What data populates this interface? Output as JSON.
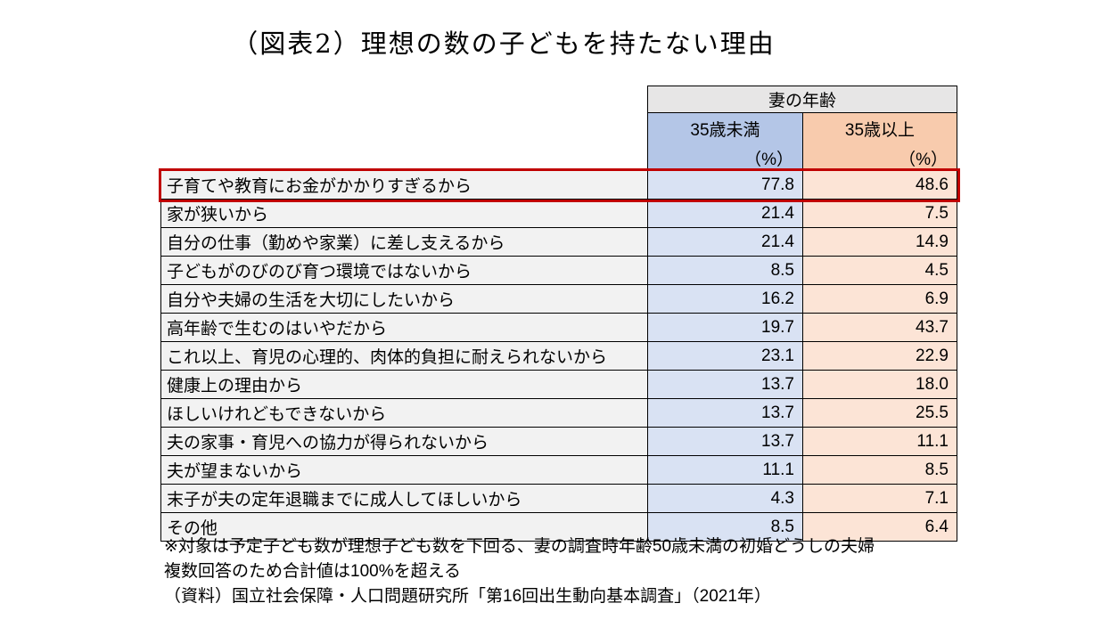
{
  "title": "（図表2）理想の数の子どもを持たない理由",
  "table": {
    "group_header": "妻の年齢",
    "columns": [
      {
        "label": "35歳未満",
        "unit": "（%）"
      },
      {
        "label": "35歳以上",
        "unit": "（%）"
      }
    ],
    "rows": [
      {
        "label": "子育てや教育にお金がかかりすぎるから",
        "under35": "77.8",
        "over35": "48.6",
        "highlighted": true
      },
      {
        "label": "家が狭いから",
        "under35": "21.4",
        "over35": "7.5",
        "highlighted": false
      },
      {
        "label": "自分の仕事（勤めや家業）に差し支えるから",
        "under35": "21.4",
        "over35": "14.9",
        "highlighted": false
      },
      {
        "label": "子どもがのびのび育つ環境ではないから",
        "under35": "8.5",
        "over35": "4.5",
        "highlighted": false
      },
      {
        "label": "自分や夫婦の生活を大切にしたいから",
        "under35": "16.2",
        "over35": "6.9",
        "highlighted": false
      },
      {
        "label": "高年齢で生むのはいやだから",
        "under35": "19.7",
        "over35": "43.7",
        "highlighted": false
      },
      {
        "label": "これ以上、育児の心理的、肉体的負担に耐えられないから",
        "under35": "23.1",
        "over35": "22.9",
        "highlighted": false
      },
      {
        "label": "健康上の理由から",
        "under35": "13.7",
        "over35": "18.0",
        "highlighted": false
      },
      {
        "label": "ほしいけれどもできないから",
        "under35": "13.7",
        "over35": "25.5",
        "highlighted": false
      },
      {
        "label": "夫の家事・育児への協力が得られないから",
        "under35": "13.7",
        "over35": "11.1",
        "highlighted": false
      },
      {
        "label": "夫が望まないから",
        "under35": "11.1",
        "over35": "8.5",
        "highlighted": false
      },
      {
        "label": "末子が夫の定年退職までに成人してほしいから",
        "under35": "4.3",
        "over35": "7.1",
        "highlighted": false
      },
      {
        "label": "その他",
        "under35": "8.5",
        "over35": "6.4",
        "highlighted": false
      }
    ]
  },
  "notes": [
    "※対象は予定子ども数が理想子ども数を下回る、妻の調査時年齢50歳未満の初婚どうしの夫婦",
    "複数回答のため合計値は100%を超える",
    "（資料）国立社会保障・人口問題研究所「第16回出生動向基本調査」（2021年）"
  ],
  "colors": {
    "group-header-bg": "#e7e6e6",
    "under35-header-bg": "#b4c6e7",
    "over35-header-bg": "#f8cbad",
    "under35-cell-bg": "#d9e2f3",
    "over35-cell-bg": "#fce4d6",
    "label-cell-bg": "#f2f2f2",
    "highlight-border": "#c00000",
    "table-border": "#000000"
  },
  "chart_data": {
    "type": "table",
    "title": "（図表2）理想の数の子どもを持たない理由",
    "group_header": "妻の年齢",
    "categories": [
      "子育てや教育にお金がかかりすぎるから",
      "家が狭いから",
      "自分の仕事（勤めや家業）に差し支えるから",
      "子どもがのびのび育つ環境ではないから",
      "自分や夫婦の生活を大切にしたいから",
      "高年齢で生むのはいやだから",
      "これ以上、育児の心理的、肉体的負担に耐えられないから",
      "健康上の理由から",
      "ほしいけれどもできないから",
      "夫の家事・育児への協力が得られないから",
      "夫が望まないから",
      "末子が夫の定年退職までに成人してほしいから",
      "その他"
    ],
    "series": [
      {
        "name": "35歳未満（%）",
        "values": [
          77.8,
          21.4,
          21.4,
          8.5,
          16.2,
          19.7,
          23.1,
          13.7,
          13.7,
          13.7,
          11.1,
          4.3,
          8.5
        ]
      },
      {
        "name": "35歳以上（%）",
        "values": [
          48.6,
          7.5,
          14.9,
          4.5,
          6.9,
          43.7,
          22.9,
          18.0,
          25.5,
          11.1,
          8.5,
          7.1,
          6.4
        ]
      }
    ],
    "highlighted_row": "子育てや教育にお金がかかりすぎるから",
    "unit": "%",
    "notes": [
      "※対象は予定子ども数が理想子ども数を下回る、妻の調査時年齢50歳未満の初婚どうしの夫婦",
      "複数回答のため合計値は100%を超える",
      "（資料）国立社会保障・人口問題研究所「第16回出生動向基本調査」（2021年）"
    ]
  }
}
